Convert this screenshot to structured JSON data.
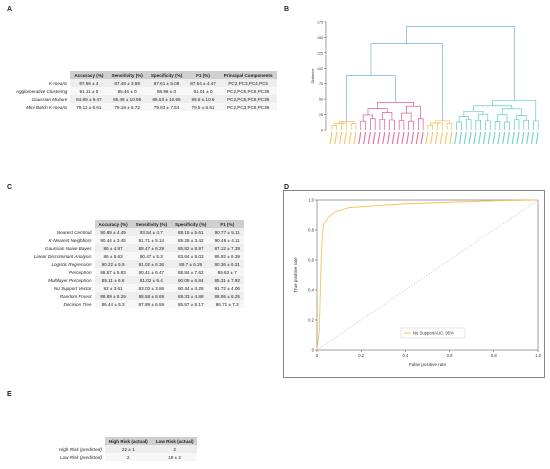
{
  "panels": {
    "A": {
      "letter": "A",
      "headers": [
        "",
        "Accuracy (%)",
        "Sensitivity (%)",
        "Specificity (%)",
        "F1 (%)",
        "Principal Components"
      ],
      "rows": [
        [
          "K-means",
          "87.56 ± 4",
          "87.48 ± 3.99",
          "87.61 ± 5.08",
          "87.54 ± 4.47",
          "PC2,PC3,PC4,PC5"
        ],
        [
          "Agglomerative Clustering",
          "91.11 ± 0",
          "95.46 ± 0",
          "86.96 ± 0",
          "91.01 ± 0",
          "PC2,PC5,PC6,PC38"
        ],
        [
          "Gaussian Mixture",
          "84.89 ± 9.47",
          "85.48 ± 10.95",
          "85.53 ± 10.65",
          "85.5 ± 10.9",
          "PC2,PC5,PC6,PC38"
        ],
        [
          "Mini Batch K-means",
          "79.11 ± 6.61",
          "79.18 ± 5.72",
          "79.83 ± 7.54",
          "79.5 ± 6.51",
          "PC2,PC3,PC5,PC38"
        ]
      ]
    },
    "B": {
      "letter": "B",
      "ylabel": "Distance",
      "yticks": [
        "0",
        "25",
        "50",
        "75",
        "100",
        "125",
        "150",
        "175"
      ]
    },
    "C": {
      "letter": "C",
      "headers": [
        "",
        "Accuracy (%)",
        "Sensitivity (%)",
        "Specificity (%)",
        "F1 (%)"
      ],
      "rows": [
        [
          "Nearest Centroid",
          "90.89 ± 4.49",
          "93.54 ± 4.7",
          "88.15 ± 5.61",
          "90.77 ± 5.11"
        ],
        [
          "K-Nearest Neighbors",
          "90.44 ± 3.45",
          "91.71 ± 5.14",
          "89.29 ± 3.42",
          "90.48 ± 4.11"
        ],
        [
          "Gaussian Naive Bayes",
          "86 ± 4.97",
          "88.47 ± 6.29",
          "85.82 ± 8.97",
          "87.12 ± 7.39"
        ],
        [
          "Linear Discriminant Analysis",
          "86 ± 5.63",
          "90.47 ± 5.3",
          "83.64 ± 8.03",
          "86.92 ± 6.39"
        ],
        [
          "Logistic Regression",
          "90.22 ± 5.9",
          "91.02 ± 6.36",
          "89.7 ± 6.26",
          "90.36 ± 6.31"
        ],
        [
          "Perceptron",
          "88.67 ± 5.83",
          "90.41 ± 6.47",
          "88.84 ± 7.62",
          "89.62 ± 7"
        ],
        [
          "Multilayer Perceptron",
          "85.11 ± 6.6",
          "81.02 ± 9.4",
          "90.09 ± 6.84",
          "85.31 ± 7.92"
        ],
        [
          "Nu Support Vector",
          "92 ± 3.61",
          "93.03 ± 3.86",
          "90.44 ± 4.28",
          "91.72 ± 4.06"
        ],
        [
          "Random Forest",
          "88.89 ± 6.29",
          "88.58 ± 8.69",
          "89.33 ± 4.88",
          "88.95 ± 6.25"
        ],
        [
          "Decision Tree",
          "86.44 ± 5.3",
          "87.89 ± 6.59",
          "85.57 ± 8.17",
          "86.71 ± 7.3"
        ]
      ]
    },
    "D": {
      "letter": "D",
      "xlabel": "False positive rate",
      "ylabel": "True positive rate",
      "ticks": [
        "0",
        "0.2",
        "0.4",
        "0.6",
        "0.8",
        "1.0"
      ],
      "legend": "Nu SupportAUC: 95%"
    },
    "E": {
      "letter": "E",
      "headers": [
        "",
        "High Risk (actual)",
        "Low Risk (actual)"
      ],
      "rows": [
        [
          "High Risk (predicted)",
          "22 ± 1",
          "2"
        ],
        [
          "Low Risk (predicted)",
          "2",
          "19 ± 2"
        ]
      ]
    }
  },
  "colors": {
    "dendro_teal": "#3fc4b8",
    "dendro_pink": "#d9427e",
    "dendro_orange": "#f0b432",
    "dendro_blue": "#5da5d6",
    "roc_curve": "#f5c45a",
    "diag": "#9aa6b8"
  },
  "chart_data": [
    {
      "type": "line",
      "panel": "D",
      "title": "",
      "xlabel": "False positive rate",
      "ylabel": "True positive rate",
      "xlim": [
        0,
        1
      ],
      "ylim": [
        0,
        1
      ],
      "series": [
        {
          "name": "Nu SupportAUC: 95%",
          "x": [
            0,
            0.01,
            0.015,
            0.02,
            0.025,
            0.03,
            0.05,
            0.08,
            0.1,
            0.15,
            0.2,
            0.3,
            0.4,
            0.5,
            0.6,
            0.8,
            1.0
          ],
          "y": [
            0,
            0.12,
            0.38,
            0.65,
            0.78,
            0.84,
            0.88,
            0.92,
            0.93,
            0.95,
            0.955,
            0.965,
            0.975,
            0.98,
            0.985,
            0.995,
            1.0
          ]
        }
      ],
      "reference_line": "diagonal",
      "legend_position": "bottom-right"
    }
  ]
}
